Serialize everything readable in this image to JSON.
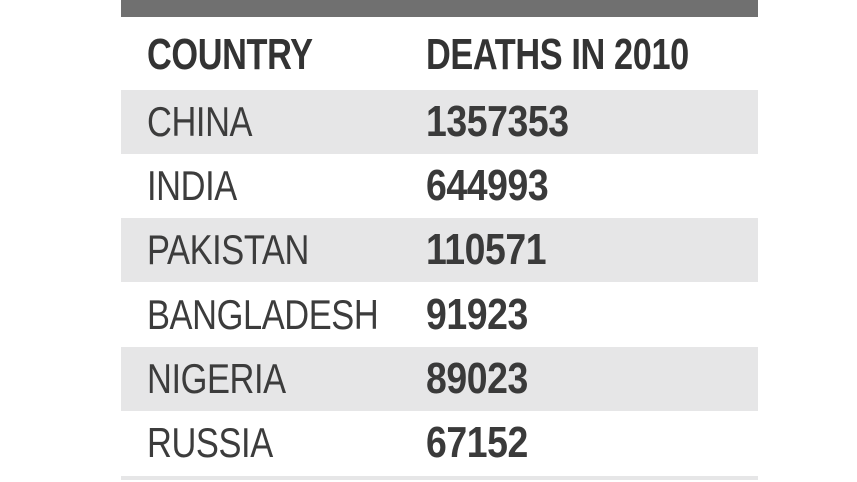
{
  "chart_data": {
    "type": "table",
    "columns": [
      "COUNTRY",
      "DEATHS IN 2010"
    ],
    "rows": [
      {
        "country": "CHINA",
        "deaths": "1357353"
      },
      {
        "country": "INDIA",
        "deaths": "644993"
      },
      {
        "country": "PAKISTAN",
        "deaths": "110571"
      },
      {
        "country": "BANGLADESH",
        "deaths": "91923"
      },
      {
        "country": "NIGERIA",
        "deaths": "89023"
      },
      {
        "country": "RUSSIA",
        "deaths": "67152"
      }
    ]
  },
  "colors": {
    "top_bar": "#707070",
    "row_shade": "#e6e6e7",
    "text": "#3a3a3a"
  }
}
